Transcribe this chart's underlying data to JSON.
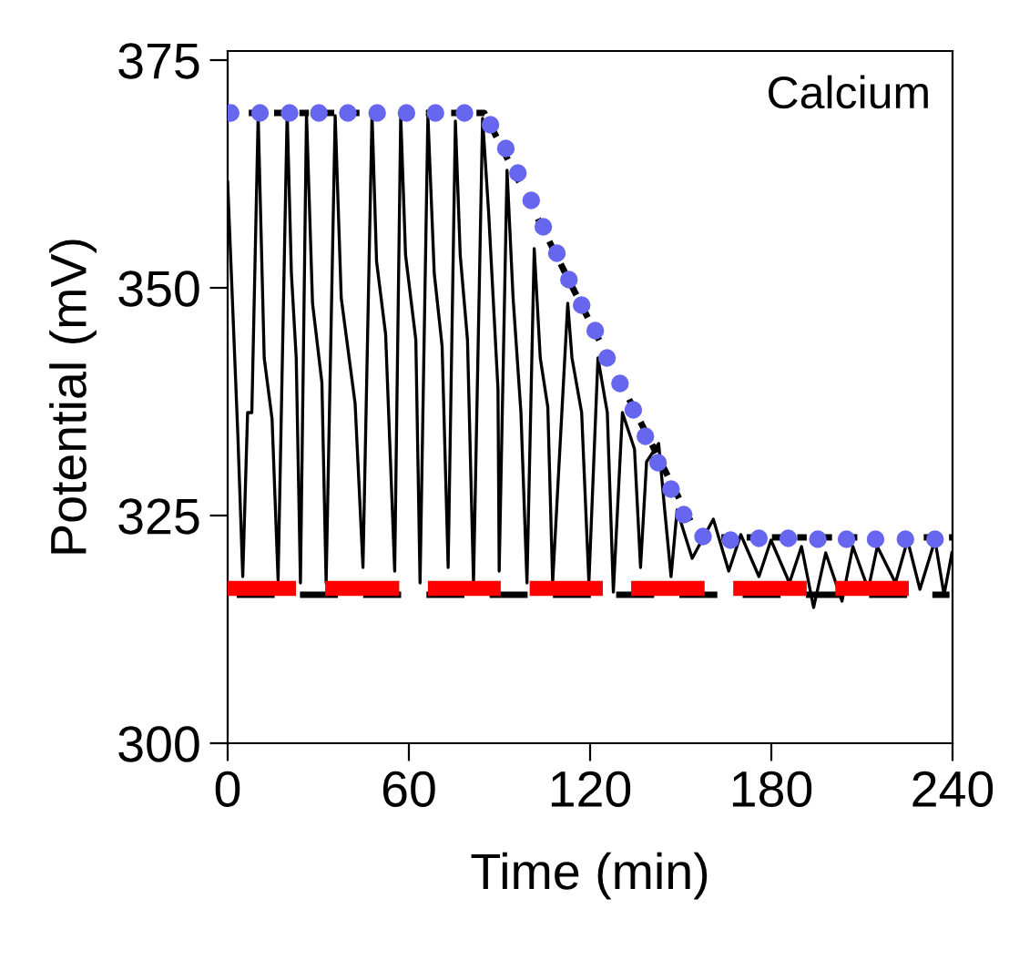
{
  "chart_data": {
    "type": "line",
    "xlabel": "Time (min)",
    "ylabel": "Potential (mV)",
    "annotations": [
      "Calcium"
    ],
    "xlim": [
      0,
      240
    ],
    "xticks": [
      0,
      60,
      120,
      180,
      240
    ],
    "ylim": [
      300,
      376
    ],
    "yticks": [
      300,
      325,
      350,
      375
    ],
    "grid": false,
    "legend": false,
    "series": [
      {
        "color": "#000000",
        "line_style": "solid",
        "marker": "none",
        "x": [
          0.0,
          3.4,
          5.0,
          6.6,
          8.0,
          10.1,
          12.1,
          14.7,
          16.7,
          19.7,
          21.1,
          22.7,
          24.1,
          26.1,
          28.1,
          31.2,
          32.6,
          35.6,
          37.6,
          42.2,
          44.8,
          47.8,
          49.3,
          52.3,
          55.3,
          57.3,
          58.9,
          62.3,
          63.7,
          66.3,
          68.4,
          71.0,
          73.0,
          75.4,
          77.0,
          79.4,
          81.4,
          84.4,
          86.4,
          89.5,
          89.9,
          92.5,
          94.5,
          97.1,
          99.1,
          101.5,
          103.5,
          106.0,
          107.6,
          112.6,
          114.0,
          117.2,
          119.6,
          122.6,
          125.7,
          127.7,
          130.7,
          134.7,
          136.7,
          138.7,
          142.7,
          144.7,
          146.8,
          148.8,
          153.8,
          160.8,
          165.9,
          169.9,
          175.9,
          179.9,
          186.0,
          190.0,
          194.0,
          198.0,
          203.4,
          207.0,
          212.1,
          215.1,
          221.1,
          225.1,
          229.2,
          234.2,
          237.2,
          239.8
        ],
        "values": [
          361.6,
          333.6,
          318.3,
          336.3,
          336.3,
          368.9,
          342.3,
          335.6,
          317.9,
          369.3,
          351.6,
          342.3,
          317.6,
          369.1,
          348.3,
          339.6,
          317.6,
          368.9,
          348.9,
          337.3,
          319.3,
          369.1,
          352.9,
          344.9,
          318.9,
          368.9,
          353.6,
          344.3,
          317.6,
          368.9,
          351.6,
          343.6,
          319.3,
          368.3,
          353.6,
          344.3,
          317.6,
          368.6,
          358.3,
          338.9,
          318.9,
          362.9,
          348.9,
          336.3,
          317.6,
          354.3,
          342.3,
          336.9,
          317.6,
          348.3,
          342.3,
          336.3,
          317.6,
          342.3,
          336.3,
          316.6,
          336.3,
          332.3,
          319.3,
          330.9,
          332.9,
          325.6,
          318.3,
          325.6,
          320.3,
          324.6,
          318.9,
          322.9,
          318.3,
          322.3,
          317.6,
          321.6,
          314.9,
          320.9,
          315.6,
          321.6,
          316.9,
          321.6,
          317.6,
          322.3,
          316.9,
          322.3,
          316.3,
          320.9
        ]
      },
      {
        "color": "#000000",
        "line_style": "dashed",
        "marker": "none",
        "x": [
          3,
          239
        ],
        "values": [
          316.3,
          316.3
        ]
      },
      {
        "color": "#000000",
        "line_style": "dotted",
        "marker": "none",
        "x": [
          7,
          85,
          156,
          240
        ],
        "values": [
          369.2,
          369.2,
          322.6,
          322.6
        ]
      },
      {
        "color": "#ff0000",
        "line_style": "solid",
        "marker": "none",
        "x": [
          1.0,
          20.1,
          27,
          34.8,
          54.3,
          61,
          68.8,
          87.9,
          95,
          102.5,
          121.7,
          129,
          136.1,
          155.4,
          162,
          169.9,
          189.2,
          196,
          203.7,
          223.0
        ],
        "values": [
          317,
          317,
          null,
          317,
          317,
          null,
          317,
          317,
          null,
          317,
          317,
          null,
          317,
          317,
          null,
          317,
          317,
          null,
          317,
          317
        ]
      },
      {
        "type": "scatter",
        "color": "#6666ee",
        "marker": "circle",
        "x": [
          1,
          10.7,
          20.5,
          30.2,
          39.8,
          49.5,
          59.2,
          68.8,
          78.4,
          87.0,
          92.1,
          96.1,
          100.5,
          104.5,
          109.0,
          113.0,
          117.2,
          121.7,
          125.6,
          129.9,
          134.3,
          138.3,
          142.5,
          146.8,
          151.0,
          157.4,
          166.5,
          175.9,
          185.6,
          195.4,
          204.9,
          214.5,
          224.4,
          234.2
        ],
        "values": [
          369.2,
          369.2,
          369.2,
          369.2,
          369.2,
          369.2,
          369.2,
          369.2,
          369.2,
          367.9,
          365.3,
          362.6,
          359.6,
          356.7,
          353.8,
          350.9,
          348.1,
          345.3,
          342.3,
          339.5,
          336.6,
          333.7,
          330.8,
          327.9,
          325.1,
          322.7,
          322.3,
          322.5,
          322.5,
          322.4,
          322.4,
          322.4,
          322.4,
          322.4
        ]
      }
    ]
  }
}
